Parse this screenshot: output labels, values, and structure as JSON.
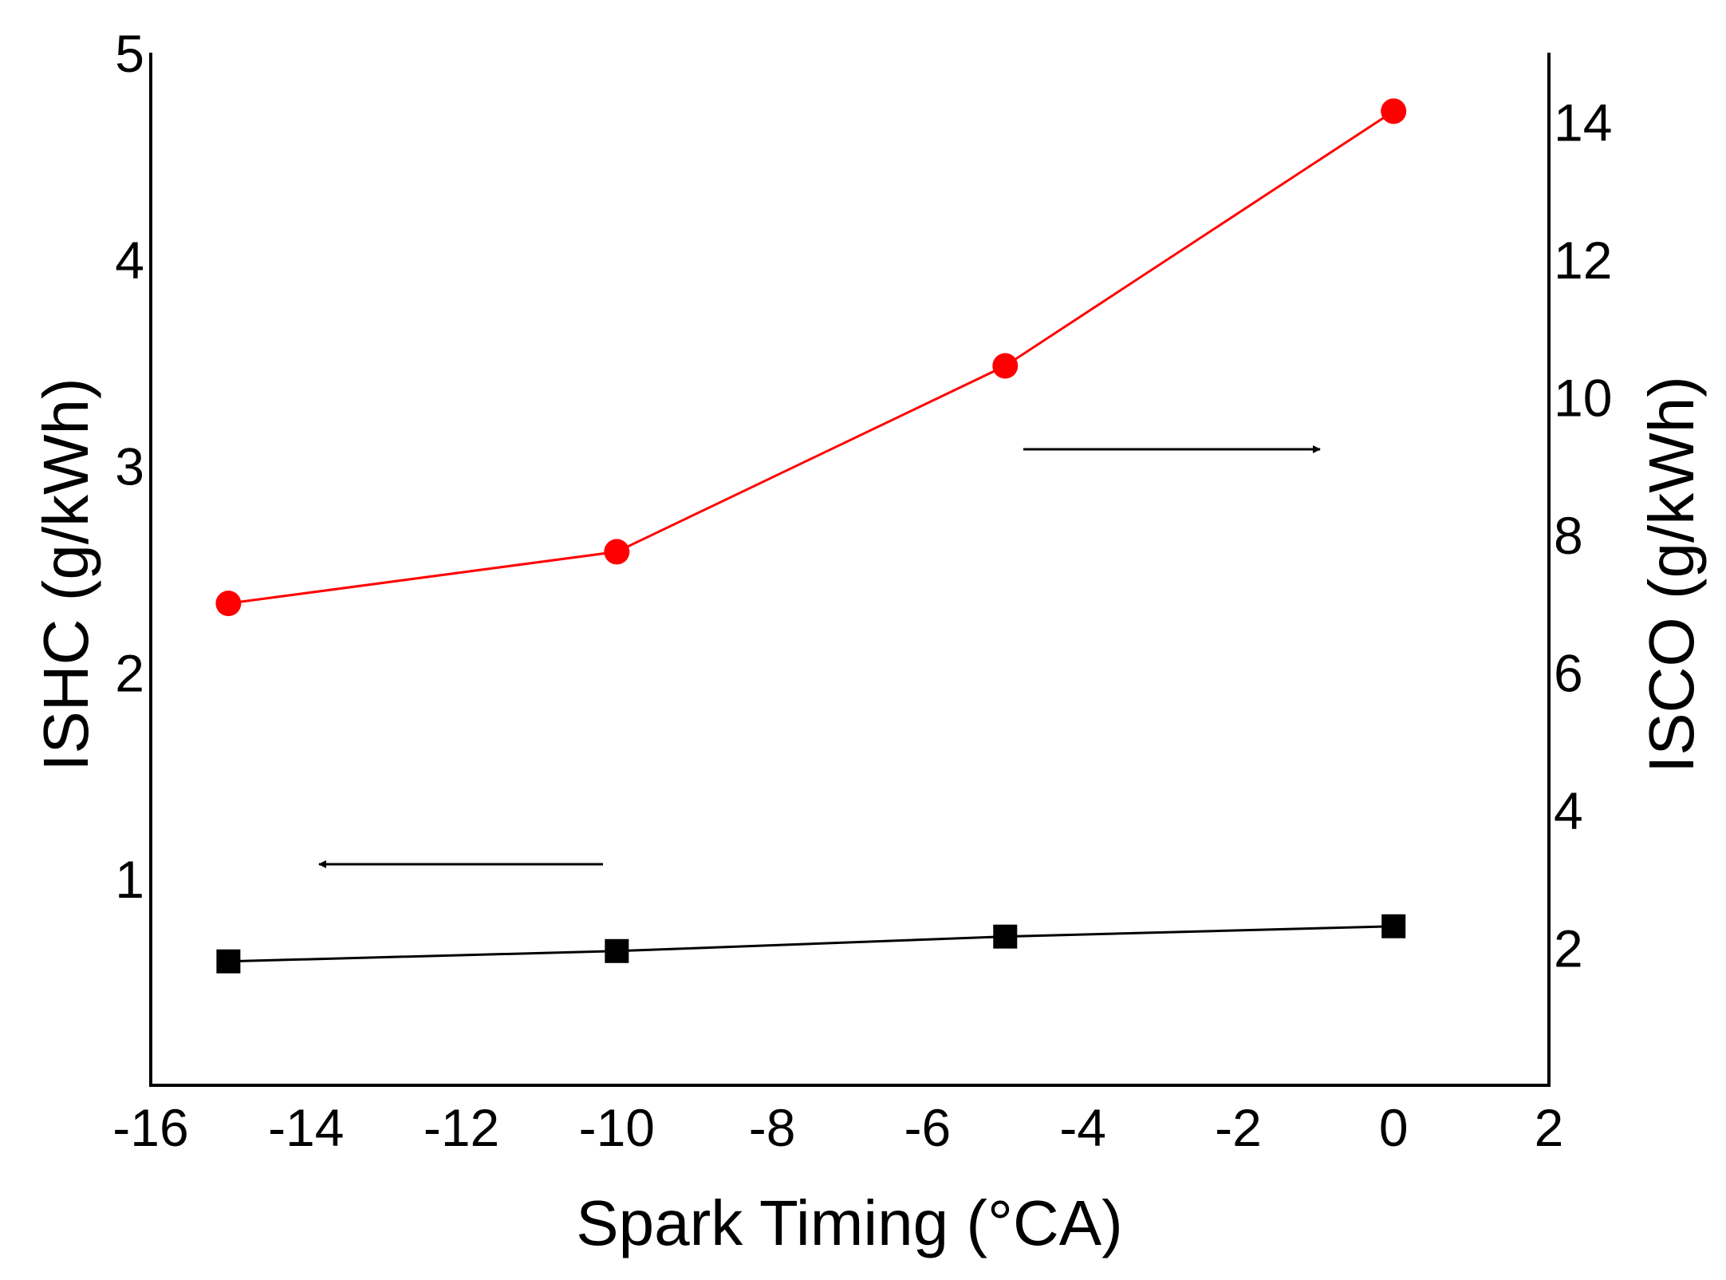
{
  "chart_data": {
    "type": "line",
    "xlabel": "Spark Timing (°CA)",
    "xlim": [
      -16,
      2
    ],
    "x_ticks": [
      "-16",
      "-14",
      "-12",
      "-10",
      "-8",
      "-6",
      "-4",
      "-2",
      "0",
      "2"
    ],
    "y_left": {
      "label": "ISHC (g/kWh)",
      "lim": [
        0,
        5
      ],
      "ticks": [
        "1",
        "2",
        "3",
        "4",
        "5"
      ]
    },
    "y_right": {
      "label": "ISCO (g/kWh)",
      "lim": [
        0,
        15
      ],
      "ticks": [
        "2",
        "4",
        "6",
        "8",
        "10",
        "12",
        "14"
      ]
    },
    "series": [
      {
        "name": "ISHC",
        "axis": "left",
        "marker": "square",
        "color": "#000000",
        "x": [
          -15,
          -10,
          -5,
          0
        ],
        "values": [
          0.6,
          0.65,
          0.72,
          0.77
        ]
      },
      {
        "name": "ISCO",
        "axis": "right",
        "marker": "circle",
        "color": "#ff0000",
        "x": [
          -15,
          -10,
          -5,
          0
        ],
        "values": [
          7.0,
          7.75,
          10.45,
          14.15
        ]
      }
    ],
    "annotations": [
      {
        "name": "arrow-to-right-axis",
        "direction": "right",
        "points_to": "ISCO"
      },
      {
        "name": "arrow-to-left-axis",
        "direction": "left",
        "points_to": "ISHC"
      }
    ]
  }
}
